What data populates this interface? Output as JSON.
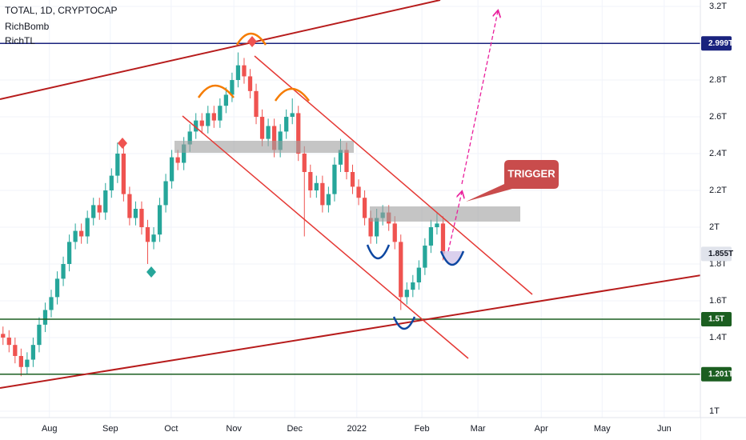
{
  "chart_data": {
    "type": "candlestick",
    "title": "TOTAL, 1D, CRYPTOCAP",
    "indicators": [
      "RichBomb",
      "RichTL"
    ],
    "annotation": "TRIGGER",
    "up_color": "#26a69a",
    "down_color": "#ef5350",
    "open": [
      1.42,
      1.4,
      1.36,
      1.3,
      1.24,
      1.28,
      1.36,
      1.47,
      1.55,
      1.62,
      1.72,
      1.8,
      1.92,
      1.98,
      1.95,
      2.05,
      2.12,
      2.08,
      2.2,
      2.28,
      2.4,
      2.18,
      2.05,
      2.1,
      2.0,
      1.92,
      1.96,
      2.12,
      2.25,
      2.38,
      2.35,
      2.45,
      2.52,
      2.58,
      2.55,
      2.62,
      2.58,
      2.66,
      2.72,
      2.8,
      2.88,
      2.82,
      2.74,
      2.6,
      2.48,
      2.55,
      2.42,
      2.52,
      2.6,
      2.62,
      2.4,
      2.3,
      2.2,
      2.24,
      2.12,
      2.18,
      2.34,
      2.42,
      2.3,
      2.22,
      2.16,
      2.05,
      1.95,
      2.05,
      2.08,
      2.02,
      1.92,
      1.62,
      1.66,
      1.7,
      1.78,
      1.9,
      2.0,
      2.02
    ],
    "high": [
      1.46,
      1.44,
      1.4,
      1.34,
      1.32,
      1.4,
      1.51,
      1.59,
      1.66,
      1.76,
      1.84,
      1.96,
      2.02,
      2.02,
      2.09,
      2.16,
      2.16,
      2.24,
      2.32,
      2.46,
      2.44,
      2.22,
      2.14,
      2.14,
      2.04,
      2.0,
      2.16,
      2.29,
      2.42,
      2.42,
      2.49,
      2.56,
      2.62,
      2.62,
      2.66,
      2.66,
      2.7,
      2.76,
      2.84,
      2.95,
      2.92,
      2.86,
      2.78,
      2.64,
      2.59,
      2.59,
      2.56,
      2.64,
      2.7,
      2.66,
      2.44,
      2.34,
      2.28,
      2.28,
      2.22,
      2.38,
      2.48,
      2.46,
      2.34,
      2.26,
      2.2,
      2.09,
      2.1,
      2.12,
      2.12,
      2.06,
      1.96,
      1.7,
      1.74,
      1.82,
      1.94,
      2.04,
      2.08,
      2.06
    ],
    "low": [
      1.36,
      1.32,
      1.26,
      1.19,
      1.2,
      1.24,
      1.32,
      1.43,
      1.51,
      1.58,
      1.68,
      1.76,
      1.88,
      1.91,
      1.91,
      2.01,
      2.04,
      2.04,
      2.16,
      2.24,
      2.14,
      2.01,
      2.01,
      1.96,
      1.8,
      1.88,
      1.92,
      2.08,
      2.21,
      2.31,
      2.31,
      2.41,
      2.48,
      2.51,
      2.51,
      2.54,
      2.54,
      2.62,
      2.68,
      2.76,
      2.78,
      2.7,
      2.56,
      2.44,
      2.44,
      2.38,
      2.38,
      2.48,
      2.56,
      2.36,
      1.95,
      2.16,
      2.16,
      2.08,
      2.08,
      2.14,
      2.3,
      2.26,
      2.18,
      2.12,
      2.01,
      1.91,
      1.91,
      2.01,
      1.98,
      1.88,
      1.55,
      1.58,
      1.62,
      1.66,
      1.74,
      1.86,
      1.96,
      1.82
    ],
    "close": [
      1.4,
      1.36,
      1.3,
      1.24,
      1.28,
      1.36,
      1.47,
      1.55,
      1.62,
      1.72,
      1.8,
      1.92,
      1.98,
      1.95,
      2.05,
      2.12,
      2.08,
      2.2,
      2.28,
      2.4,
      2.18,
      2.05,
      2.1,
      2.0,
      1.92,
      1.96,
      2.12,
      2.25,
      2.38,
      2.35,
      2.45,
      2.52,
      2.58,
      2.55,
      2.62,
      2.58,
      2.66,
      2.72,
      2.8,
      2.88,
      2.82,
      2.74,
      2.6,
      2.48,
      2.55,
      2.42,
      2.52,
      2.6,
      2.62,
      2.4,
      2.3,
      2.2,
      2.24,
      2.12,
      2.18,
      2.34,
      2.42,
      2.3,
      2.22,
      2.16,
      2.05,
      1.95,
      2.05,
      2.08,
      2.02,
      1.92,
      1.62,
      1.66,
      1.7,
      1.78,
      1.9,
      2.0,
      2.02,
      1.855
    ],
    "xlim": [
      0,
      116.2
    ],
    "xticks": [
      {
        "value": 8.2,
        "label": "Aug"
      },
      {
        "value": 18.3,
        "label": "Sep"
      },
      {
        "value": 28.4,
        "label": "Oct"
      },
      {
        "value": 38.8,
        "label": "Nov"
      },
      {
        "value": 48.9,
        "label": "Dec"
      },
      {
        "value": 59.2,
        "label": "2022"
      },
      {
        "value": 70.0,
        "label": "Feb"
      },
      {
        "value": 79.3,
        "label": "Mar"
      },
      {
        "value": 89.8,
        "label": "Apr"
      },
      {
        "value": 99.9,
        "label": "May"
      },
      {
        "value": 110.2,
        "label": "Jun"
      }
    ],
    "ylim": [
      0.965,
      3.235
    ],
    "yticks": [
      {
        "value": 3.2,
        "label": "3.2T"
      },
      {
        "value": 2.8,
        "label": "2.8T"
      },
      {
        "value": 2.6,
        "label": "2.6T"
      },
      {
        "value": 2.4,
        "label": "2.4T"
      },
      {
        "value": 2.2,
        "label": "2.2T"
      },
      {
        "value": 2,
        "label": "2T"
      },
      {
        "value": 1.8,
        "label": "1.8T"
      },
      {
        "value": 1.6,
        "label": "1.6T"
      },
      {
        "value": 1.4,
        "label": "1.4T"
      },
      {
        "value": 1,
        "label": "1T"
      }
    ],
    "price_lines": [
      {
        "value": 2.999,
        "label": "2.999T",
        "color": "#1a237e"
      },
      {
        "value": 1.855,
        "label": "1.855T",
        "color": "#e0e3eb"
      },
      {
        "value": 1.5,
        "label": "1.5T",
        "color": "#1b5e20"
      },
      {
        "value": 1.201,
        "label": "1.201T",
        "color": "#1b5e20"
      }
    ]
  }
}
